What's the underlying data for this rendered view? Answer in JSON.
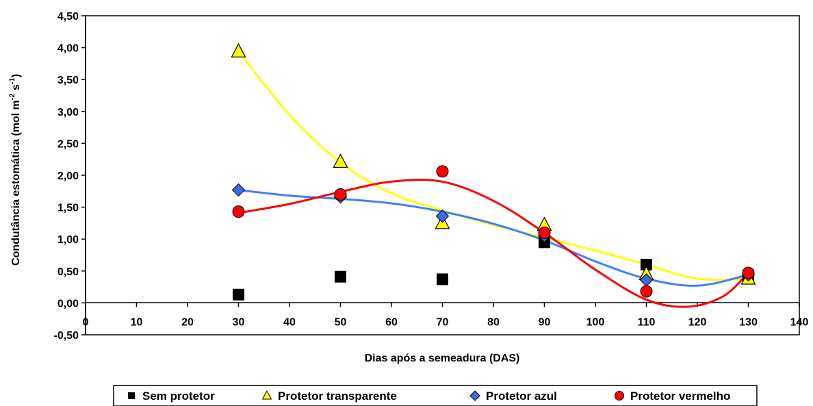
{
  "chart_data": {
    "type": "scatter",
    "title": "",
    "xlabel": "Dias após a semeadura (DAS)",
    "ylabel": {
      "main": "Condutância estomática (mol m",
      "sup1": "-2",
      "mid": " s",
      "sup2": "-1",
      "end": ")"
    },
    "xlim": [
      0,
      140
    ],
    "ylim": [
      -0.5,
      4.5
    ],
    "x_ticks": [
      "0",
      "10",
      "20",
      "30",
      "40",
      "50",
      "60",
      "70",
      "80",
      "90",
      "100",
      "110",
      "120",
      "130",
      "140"
    ],
    "y_ticks": [
      "-0,50",
      "0,00",
      "0,50",
      "1,00",
      "1,50",
      "2,00",
      "2,50",
      "3,00",
      "3,50",
      "4,00",
      "4,50"
    ],
    "grid": false,
    "legend_position": "bottom",
    "series": [
      {
        "name": "Sem protetor",
        "marker": "square",
        "color": "#000000",
        "x": [
          30,
          50,
          70,
          90,
          110,
          130
        ],
        "y": [
          0.13,
          0.41,
          0.37,
          0.95,
          0.6,
          0.43
        ],
        "trend": []
      },
      {
        "name": "Protetor transparente",
        "marker": "triangle",
        "color": "#ffff00",
        "line_color": "#ffff00",
        "x": [
          30,
          50,
          70,
          90,
          110,
          130
        ],
        "y": [
          3.94,
          2.21,
          1.25,
          1.22,
          0.45,
          0.38
        ],
        "trend": [
          [
            30,
            3.94
          ],
          [
            40,
            2.95
          ],
          [
            50,
            2.2
          ],
          [
            60,
            1.72
          ],
          [
            70,
            1.45
          ],
          [
            80,
            1.22
          ],
          [
            90,
            1.02
          ],
          [
            100,
            0.82
          ],
          [
            110,
            0.6
          ],
          [
            120,
            0.38
          ],
          [
            130,
            0.38
          ]
        ]
      },
      {
        "name": "Protetor azul",
        "marker": "diamond",
        "color": "#4169e1",
        "line_color": "#3f7fff",
        "x": [
          30,
          50,
          70,
          90,
          110,
          130
        ],
        "y": [
          1.77,
          1.66,
          1.36,
          1.05,
          0.36,
          0.44
        ],
        "trend": [
          [
            30,
            1.77
          ],
          [
            40,
            1.68
          ],
          [
            50,
            1.63
          ],
          [
            60,
            1.56
          ],
          [
            70,
            1.43
          ],
          [
            80,
            1.24
          ],
          [
            90,
            0.98
          ],
          [
            100,
            0.65
          ],
          [
            110,
            0.38
          ],
          [
            120,
            0.27
          ],
          [
            130,
            0.44
          ]
        ]
      },
      {
        "name": "Protetor vermelho",
        "marker": "circle",
        "color": "#ff0000",
        "line_color": "#ff0000",
        "x": [
          30,
          50,
          70,
          90,
          110,
          130
        ],
        "y": [
          1.43,
          1.7,
          2.06,
          1.1,
          0.18,
          0.47
        ],
        "trend": [
          [
            30,
            1.41
          ],
          [
            40,
            1.55
          ],
          [
            50,
            1.74
          ],
          [
            60,
            1.9
          ],
          [
            70,
            1.9
          ],
          [
            80,
            1.6
          ],
          [
            90,
            1.1
          ],
          [
            100,
            0.52
          ],
          [
            110,
            0.05
          ],
          [
            118,
            -0.06
          ],
          [
            125,
            0.1
          ],
          [
            130,
            0.47
          ]
        ]
      }
    ]
  }
}
